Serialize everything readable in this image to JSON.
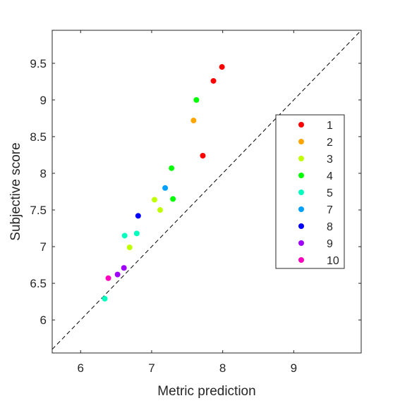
{
  "chart_data": {
    "type": "scatter",
    "title": "",
    "xlabel": "Metric prediction",
    "ylabel": "Subjective score",
    "xlim": [
      5.6,
      9.95
    ],
    "ylim": [
      5.55,
      9.95
    ],
    "xticks": [
      6,
      7,
      8,
      9
    ],
    "xtick_labels": [
      "6",
      "7",
      "8",
      "9"
    ],
    "yticks": [
      6,
      6.5,
      7,
      7.5,
      8,
      8.5,
      9,
      9.5
    ],
    "ytick_labels": [
      "6",
      "6.5",
      "7",
      "7.5",
      "8",
      "8.5",
      "9",
      "9.5"
    ],
    "grid": false,
    "reference_line": "y = x (dashed)",
    "legend_position": "right",
    "series": [
      {
        "name": "1",
        "color": "#ff0000",
        "points": [
          [
            7.99,
            9.45
          ],
          [
            7.87,
            9.26
          ],
          [
            7.72,
            8.24
          ]
        ]
      },
      {
        "name": "2",
        "color": "#ffa500",
        "points": [
          [
            7.59,
            8.72
          ]
        ]
      },
      {
        "name": "3",
        "color": "#bfff00",
        "points": [
          [
            7.04,
            7.64
          ],
          [
            7.12,
            7.5
          ],
          [
            6.69,
            6.99
          ]
        ]
      },
      {
        "name": "4",
        "color": "#00ff00",
        "points": [
          [
            7.63,
            9.0
          ],
          [
            7.28,
            8.07
          ],
          [
            7.3,
            7.65
          ]
        ]
      },
      {
        "name": "5",
        "color": "#00ffbf",
        "points": [
          [
            6.62,
            7.15
          ],
          [
            6.79,
            7.18
          ],
          [
            6.34,
            6.29
          ]
        ]
      },
      {
        "name": "7",
        "color": "#00a0ff",
        "points": [
          [
            7.19,
            7.8
          ]
        ]
      },
      {
        "name": "8",
        "color": "#0000ff",
        "points": [
          [
            6.81,
            7.42
          ]
        ]
      },
      {
        "name": "9",
        "color": "#9f00ff",
        "points": [
          [
            6.61,
            6.71
          ],
          [
            6.52,
            6.62
          ]
        ]
      },
      {
        "name": "10",
        "color": "#ff00bf",
        "points": [
          [
            6.39,
            6.57
          ]
        ]
      }
    ]
  }
}
